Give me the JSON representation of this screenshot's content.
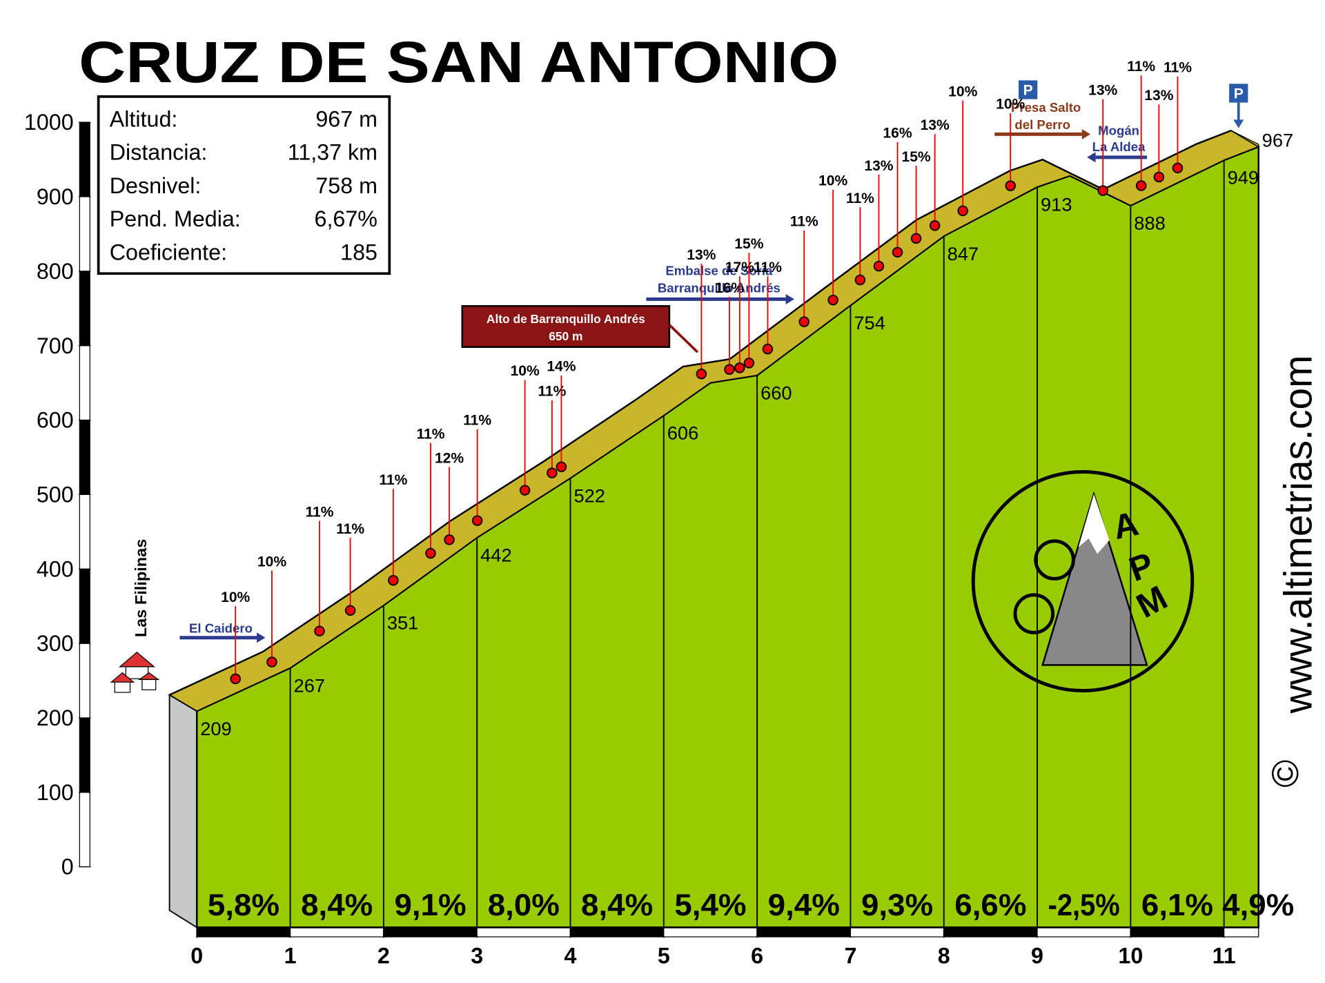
{
  "chart_data": {
    "type": "area",
    "title": "CRUZ DE SAN ANTONIO",
    "info": [
      {
        "label": "Altitud:",
        "value": "967 m"
      },
      {
        "label": "Distancia:",
        "value": "11,37 km"
      },
      {
        "label": "Desnivel:",
        "value": "758 m"
      },
      {
        "label": "Pend. Media:",
        "value": "6,67%"
      },
      {
        "label": "Coeficiente:",
        "value": 185
      }
    ],
    "x": [
      0,
      1,
      2,
      3,
      4,
      5,
      5.5,
      6,
      7,
      8,
      9,
      9.35,
      10,
      11,
      11.37
    ],
    "series": [
      {
        "color": "#99cc00",
        "values": [
          209,
          267,
          351,
          442,
          522,
          606,
          650,
          660,
          754,
          847,
          913,
          928,
          888,
          949,
          967
        ]
      }
    ],
    "xlim": [
      0,
      11.37
    ],
    "xticks": [
      0,
      1,
      2,
      3,
      4,
      5,
      6,
      7,
      8,
      9,
      10,
      11
    ],
    "ylim": [
      0,
      1000
    ],
    "yticks": [
      0,
      100,
      200,
      300,
      400,
      500,
      600,
      700,
      800,
      900,
      1000
    ],
    "gradients": {
      "values": [
        5.8,
        8.4,
        9.1,
        8.0,
        8.4,
        5.4,
        9.4,
        9.3,
        6.6,
        -2.5,
        6.1,
        4.9
      ],
      "value_labels": [
        "5,8%",
        "8,4%",
        "9,1%",
        "8,0%",
        "8,4%",
        "5,4%",
        "9,4%",
        "9,3%",
        "6,6%",
        "-2,5%",
        "6,1%",
        "4,9%"
      ]
    },
    "pins": {
      "x": [
        0.56,
        0.95,
        1.46,
        1.79,
        2.25,
        2.65,
        2.85,
        3.15,
        3.66,
        3.95,
        4.05,
        5.55,
        5.85,
        5.96,
        6.06,
        6.26,
        6.65,
        6.96,
        7.25,
        7.45,
        7.65,
        7.85,
        8.05,
        8.35,
        8.86,
        9.85,
        10.26,
        10.45,
        10.65
      ],
      "values": [
        10,
        10,
        11,
        11,
        11,
        11,
        12,
        11,
        10,
        11,
        14,
        13,
        16,
        17,
        15,
        11,
        11,
        10,
        11,
        13,
        16,
        15,
        13,
        10,
        10,
        13,
        11,
        13,
        11
      ],
      "value_labels": [
        "10%",
        "10%",
        "11%",
        "11%",
        "11%",
        "11%",
        "12%",
        "11%",
        "10%",
        "11%",
        "14%",
        "13%",
        "16%",
        "17%",
        "15%",
        "11%",
        "11%",
        "10%",
        "11%",
        "13%",
        "16%",
        "15%",
        "13%",
        "10%",
        "10%",
        "13%",
        "11%",
        "13%",
        "11%"
      ]
    },
    "annotations": {
      "start": "Las Filipinas",
      "caidero": "El Caidero",
      "embalse_1": "Embalse de Soria",
      "embalse_2": "Barranquillo Andrés",
      "alto_1": "Alto de Barranquillo Andrés",
      "alto_2": "650 m",
      "presa_1": "Presa Salto",
      "presa_2": "del Perro",
      "mogan_1": "Mogán",
      "mogan_2": "La Aldea",
      "parking": "P",
      "website": "www.altimetrias.com",
      "copyright": "©",
      "logo": [
        "A",
        "P",
        "M"
      ]
    }
  }
}
